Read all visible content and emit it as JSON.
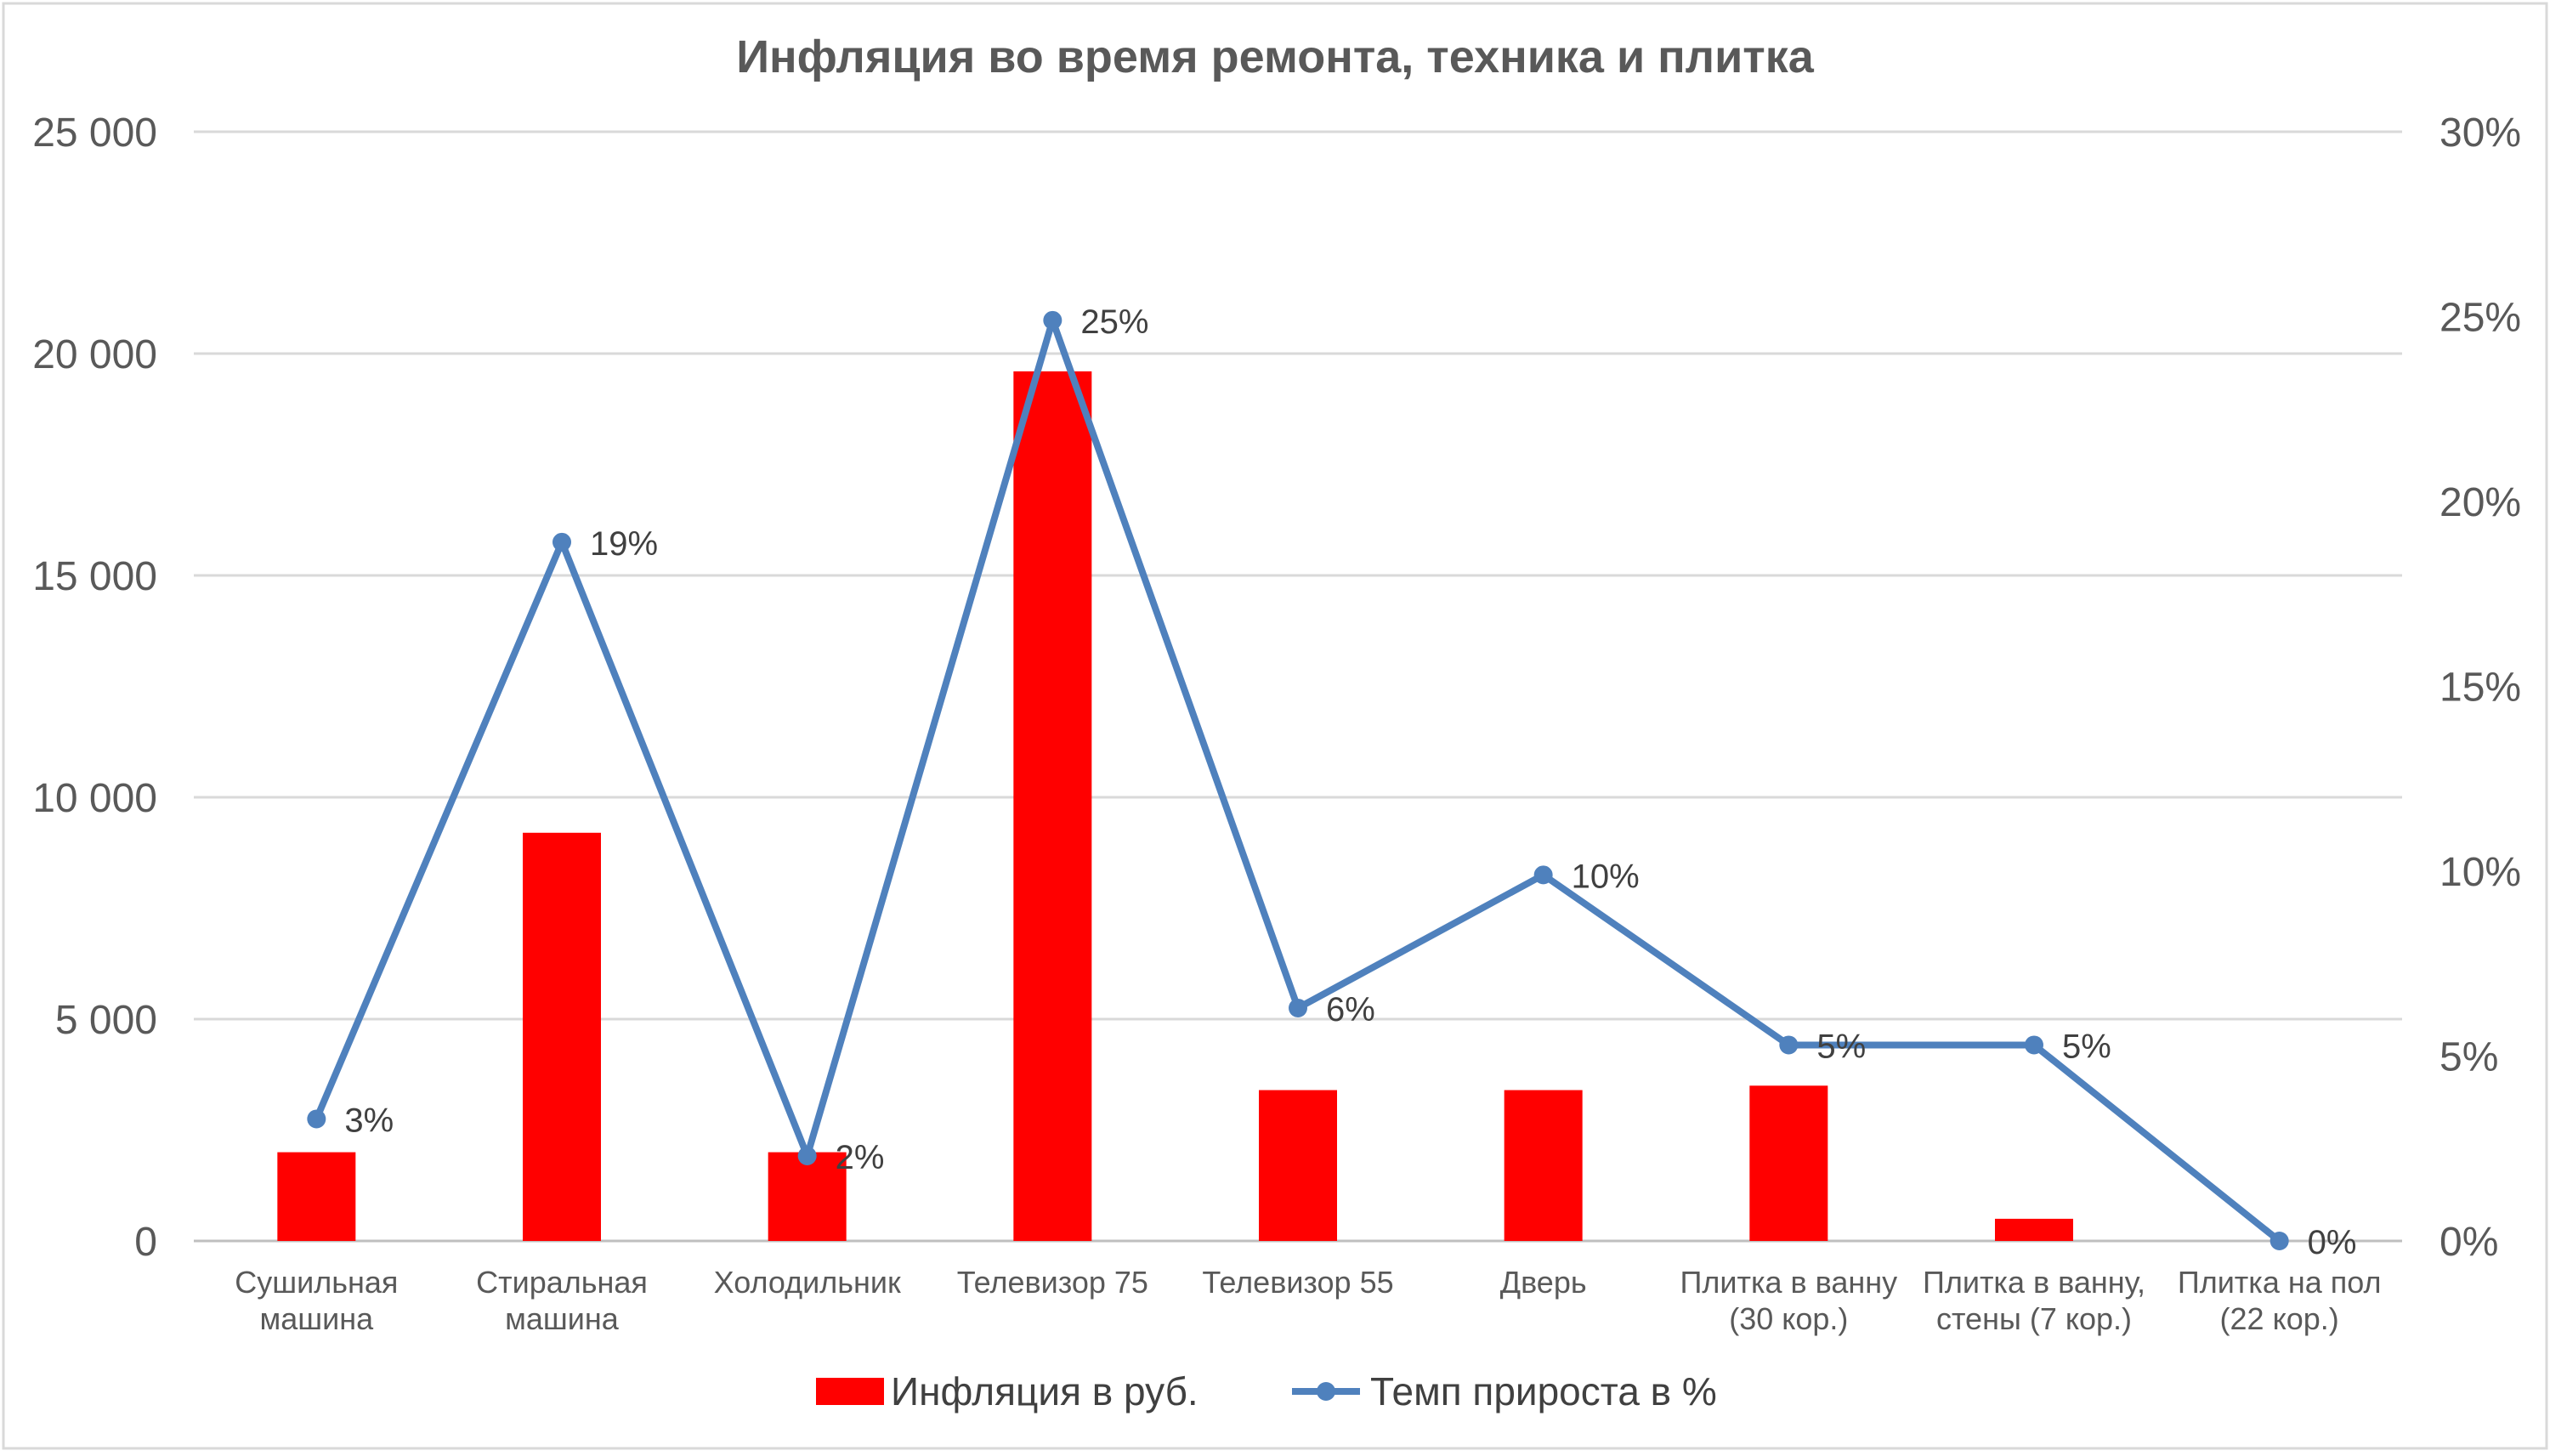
{
  "chart_data": {
    "type": "bar",
    "title": "Инфляция во время ремонта, техника и плитка",
    "categories": [
      [
        "Сушильная",
        "машина"
      ],
      [
        "Стиральная",
        "машина"
      ],
      [
        "Холодильник"
      ],
      [
        "Телевизор 75"
      ],
      [
        "Телевизор 55"
      ],
      [
        "Дверь"
      ],
      [
        "Плитка в ванну",
        "(30 кор.)"
      ],
      [
        "Плитка в ванну,",
        "стены (7 кор.)"
      ],
      [
        "Плитка на пол",
        "(22 кор.)"
      ]
    ],
    "series": [
      {
        "name": "Инфляция в руб.",
        "type": "bar",
        "axis": "left",
        "color": "#ff0000",
        "values": [
          2000,
          9200,
          2000,
          19600,
          3400,
          3400,
          3500,
          500,
          0
        ]
      },
      {
        "name": "Темп прироста в %",
        "type": "line",
        "axis": "right",
        "color": "#4f81bd",
        "values": [
          3.3,
          18.9,
          2.3,
          24.9,
          6.3,
          9.9,
          5.3,
          5.3,
          0
        ],
        "data_labels": [
          "3%",
          "19%",
          "2%",
          "25%",
          "6%",
          "10%",
          "5%",
          "5%",
          "0%"
        ]
      }
    ],
    "y_left": {
      "ylim": [
        0,
        25000
      ],
      "ticks": [
        0,
        5000,
        10000,
        15000,
        20000,
        25000
      ],
      "tick_labels": [
        "0",
        "5 000",
        "10 000",
        "15 000",
        "20 000",
        "25 000"
      ]
    },
    "y_right": {
      "ylim": [
        0,
        30
      ],
      "ticks": [
        0,
        5,
        10,
        15,
        20,
        25,
        30
      ],
      "tick_labels": [
        "0%",
        "5%",
        "10%",
        "15%",
        "20%",
        "25%",
        "30%"
      ]
    },
    "grid": true,
    "legend": "bottom"
  }
}
